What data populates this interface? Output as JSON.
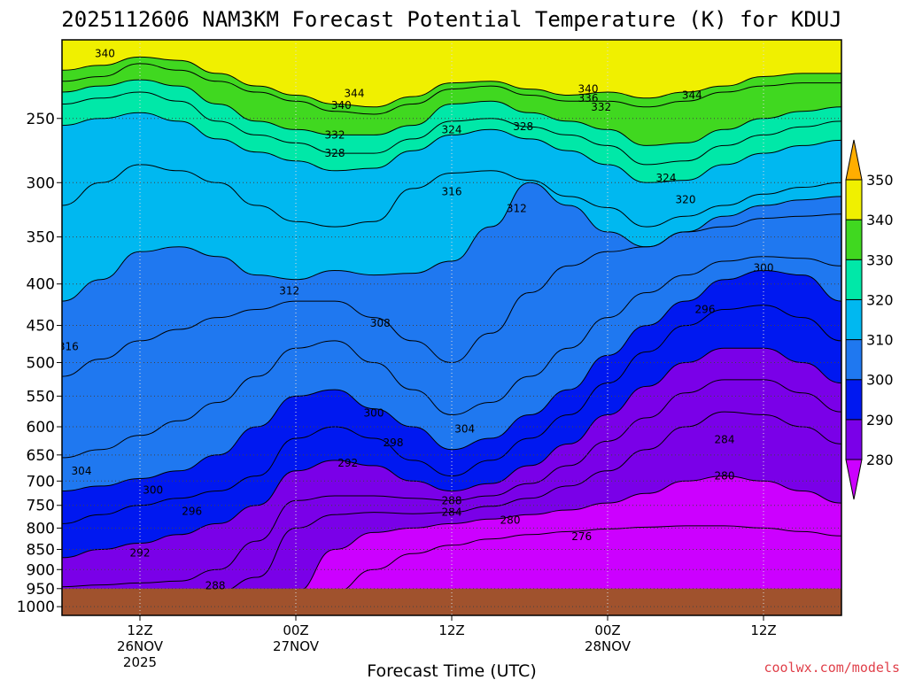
{
  "chart_data": {
    "type": "heatmap",
    "title": "2025112606 NAM3KM Forecast Potential Temperature (K) for KDUJ",
    "xlabel": "Forecast Time (UTC)",
    "ylabel": "",
    "credit": "coolwx.com/models",
    "x_ticks": [
      {
        "hours": 6,
        "lines": [
          "12Z",
          "26NOV",
          "2025"
        ]
      },
      {
        "hours": 18,
        "lines": [
          "00Z",
          "27NOV"
        ]
      },
      {
        "hours": 30,
        "lines": [
          "12Z"
        ]
      },
      {
        "hours": 42,
        "lines": [
          "00Z",
          "28NOV"
        ]
      },
      {
        "hours": 54,
        "lines": [
          "12Z"
        ]
      }
    ],
    "xlim_hours": [
      0,
      60
    ],
    "y_ticks": [
      250,
      300,
      350,
      400,
      450,
      500,
      550,
      600,
      650,
      700,
      750,
      800,
      850,
      900,
      950,
      1000
    ],
    "ylim": [
      200,
      1025
    ],
    "y_scale": "log",
    "ground_level_hPa": 950,
    "colorbar": {
      "levels": [
        280,
        290,
        300,
        310,
        320,
        330,
        340,
        350
      ],
      "tick_labels": [
        "280",
        "290",
        "300",
        "310",
        "320",
        "330",
        "340",
        "350"
      ],
      "colors": [
        "#cc00ff",
        "#7a00e8",
        "#0018f0",
        "#1f78f0",
        "#00b8f0",
        "#00e8a8",
        "#40d820",
        "#f0f000",
        "#ffae00"
      ],
      "extend": "both"
    },
    "ground_color": "#a0522d",
    "x_hours": [
      0,
      3,
      6,
      9,
      12,
      15,
      18,
      21,
      24,
      27,
      30,
      33,
      36,
      39,
      42,
      45,
      48,
      51,
      54,
      57,
      60
    ],
    "contours": [
      {
        "value": 344,
        "p": [
          225,
          222,
          214,
          218,
          225,
          232,
          238,
          245,
          247,
          240,
          230,
          228,
          234,
          238,
          238,
          242,
          238,
          232,
          228,
          226,
          226
        ]
      },
      {
        "value": 340,
        "p": [
          218,
          215,
          210,
          212,
          220,
          228,
          234,
          240,
          242,
          235,
          226,
          225,
          230,
          234,
          232,
          236,
          232,
          228,
          222,
          220,
          220
        ]
      },
      {
        "value": 332,
        "p": [
          232,
          228,
          224,
          228,
          240,
          252,
          258,
          262,
          262,
          255,
          240,
          238,
          246,
          252,
          258,
          270,
          268,
          258,
          250,
          245,
          242
        ]
      },
      {
        "value": 328,
        "p": [
          240,
          236,
          232,
          238,
          252,
          262,
          268,
          276,
          276,
          265,
          252,
          250,
          256,
          262,
          270,
          285,
          282,
          270,
          262,
          256,
          252
        ]
      },
      {
        "value": 324,
        "p": [
          255,
          250,
          246,
          252,
          265,
          275,
          282,
          290,
          288,
          274,
          262,
          258,
          265,
          274,
          285,
          300,
          298,
          285,
          276,
          270,
          266
        ]
      },
      {
        "value": 316,
        "p": [
          320,
          300,
          285,
          290,
          300,
          320,
          335,
          340,
          335,
          305,
          292,
          290,
          298,
          312,
          322,
          340,
          330,
          320,
          310,
          304,
          300
        ]
      },
      {
        "value": 312,
        "p": [
          420,
          395,
          365,
          360,
          370,
          390,
          395,
          385,
          390,
          388,
          375,
          340,
          300,
          320,
          345,
          360,
          345,
          330,
          320,
          315,
          312
        ]
      },
      {
        "value": 308,
        "p": [
          520,
          495,
          470,
          455,
          440,
          430,
          420,
          420,
          440,
          470,
          500,
          460,
          410,
          380,
          365,
          360,
          345,
          340,
          332,
          330,
          328
        ]
      },
      {
        "value": 304,
        "p": [
          655,
          640,
          615,
          590,
          560,
          520,
          480,
          470,
          500,
          540,
          580,
          560,
          520,
          480,
          440,
          410,
          390,
          375,
          370,
          372,
          380
        ]
      },
      {
        "value": 300,
        "p": [
          720,
          710,
          695,
          680,
          650,
          600,
          550,
          540,
          570,
          600,
          640,
          620,
          580,
          540,
          490,
          450,
          420,
          395,
          385,
          390,
          420
        ]
      },
      {
        "value": 296,
        "p": [
          790,
          770,
          750,
          735,
          720,
          690,
          620,
          600,
          620,
          660,
          690,
          660,
          620,
          580,
          530,
          485,
          450,
          430,
          425,
          440,
          470
        ]
      },
      {
        "value": 292,
        "p": [
          870,
          850,
          835,
          815,
          790,
          750,
          680,
          660,
          670,
          700,
          720,
          705,
          670,
          630,
          580,
          535,
          500,
          480,
          480,
          500,
          530
        ]
      },
      {
        "value": 288,
        "p": [
          945,
          940,
          935,
          930,
          900,
          830,
          740,
          730,
          730,
          735,
          740,
          730,
          705,
          670,
          625,
          585,
          545,
          525,
          525,
          545,
          575
        ]
      },
      {
        "value": 284,
        "p": [
          960,
          960,
          960,
          960,
          960,
          920,
          800,
          770,
          765,
          768,
          765,
          752,
          735,
          710,
          680,
          640,
          600,
          575,
          580,
          600,
          630
        ]
      },
      {
        "value": 280,
        "p": [
          960,
          960,
          960,
          960,
          960,
          960,
          960,
          850,
          810,
          800,
          790,
          780,
          770,
          760,
          745,
          725,
          700,
          690,
          700,
          720,
          745
        ]
      },
      {
        "value": 276,
        "p": [
          960,
          960,
          960,
          960,
          960,
          960,
          960,
          960,
          900,
          860,
          840,
          825,
          815,
          808,
          802,
          798,
          795,
          795,
          800,
          808,
          818
        ]
      }
    ],
    "contour_labels": [
      {
        "text": "340",
        "hours": 3.3,
        "p": 208
      },
      {
        "text": "344",
        "hours": 22.5,
        "p": 233
      },
      {
        "text": "340",
        "hours": 21.5,
        "p": 241
      },
      {
        "text": "340",
        "hours": 40.5,
        "p": 230
      },
      {
        "text": "336",
        "hours": 40.5,
        "p": 236
      },
      {
        "text": "332",
        "hours": 41.5,
        "p": 242
      },
      {
        "text": "344",
        "hours": 48.5,
        "p": 234
      },
      {
        "text": "332",
        "hours": 21.0,
        "p": 262
      },
      {
        "text": "324",
        "hours": 30.0,
        "p": 258
      },
      {
        "text": "328",
        "hours": 35.5,
        "p": 256
      },
      {
        "text": "328",
        "hours": 21.0,
        "p": 276
      },
      {
        "text": "324",
        "hours": 46.5,
        "p": 296
      },
      {
        "text": "320",
        "hours": 48.0,
        "p": 315
      },
      {
        "text": "316",
        "hours": 30.0,
        "p": 308
      },
      {
        "text": "312",
        "hours": 35.0,
        "p": 323
      },
      {
        "text": "312",
        "hours": 17.5,
        "p": 408
      },
      {
        "text": "300",
        "hours": 54.0,
        "p": 382
      },
      {
        "text": "296",
        "hours": 49.5,
        "p": 430
      },
      {
        "text": "308",
        "hours": 24.5,
        "p": 447
      },
      {
        "text": "316",
        "hours": 0.5,
        "p": 478
      },
      {
        "text": "300",
        "hours": 24.0,
        "p": 577
      },
      {
        "text": "304",
        "hours": 31.0,
        "p": 604
      },
      {
        "text": "284",
        "hours": 51.0,
        "p": 622
      },
      {
        "text": "298",
        "hours": 25.5,
        "p": 628
      },
      {
        "text": "292",
        "hours": 22.0,
        "p": 665
      },
      {
        "text": "304",
        "hours": 1.5,
        "p": 680
      },
      {
        "text": "280",
        "hours": 51.0,
        "p": 690
      },
      {
        "text": "300",
        "hours": 7.0,
        "p": 718
      },
      {
        "text": "288",
        "hours": 30.0,
        "p": 740
      },
      {
        "text": "296",
        "hours": 10.0,
        "p": 763
      },
      {
        "text": "284",
        "hours": 30.0,
        "p": 765
      },
      {
        "text": "280",
        "hours": 34.5,
        "p": 782
      },
      {
        "text": "276",
        "hours": 40.0,
        "p": 820
      },
      {
        "text": "292",
        "hours": 6.0,
        "p": 858
      },
      {
        "text": "288",
        "hours": 11.8,
        "p": 942
      }
    ]
  }
}
